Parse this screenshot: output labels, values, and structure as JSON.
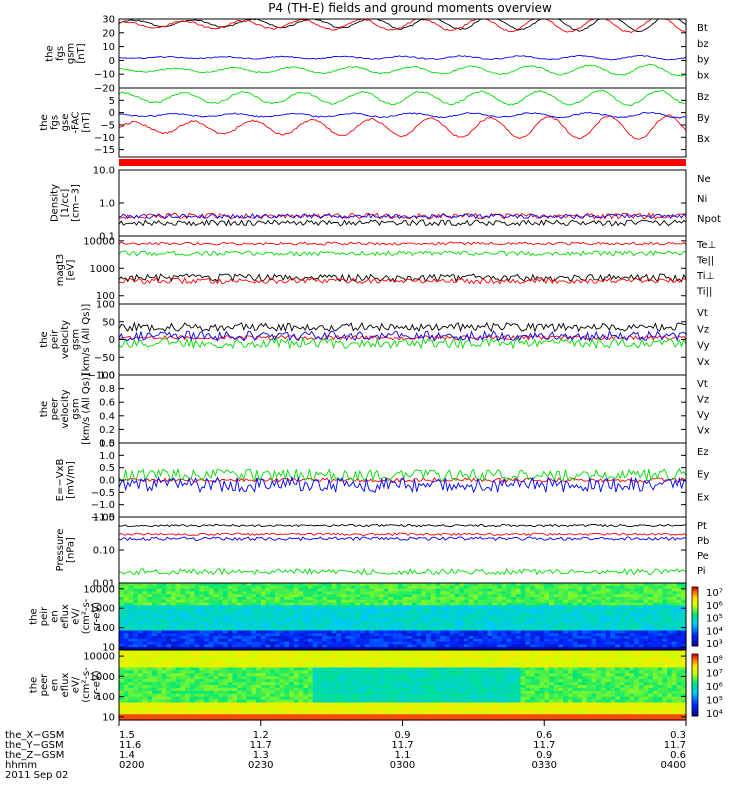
{
  "title": "P4 (TH-E) fields and ground moments overview",
  "colors": {
    "black": "#000000",
    "red": "#ff0000",
    "green": "#00dd00",
    "blue": "#0000ff"
  },
  "chart_data": [
    {
      "id": "fgs_gsm",
      "type": "line",
      "ylabel_lines": [
        "the",
        "fgs",
        "gsm",
        "[nT]"
      ],
      "ylim": [
        -20,
        30
      ],
      "ticks": [
        "30",
        "20",
        "10",
        "0",
        "−10",
        "−20"
      ],
      "tick_values": [
        30,
        20,
        10,
        0,
        -10,
        -20
      ],
      "series": [
        {
          "name": "Bt",
          "color": "black",
          "base": 27,
          "amp_start": 2,
          "amp_end": 6,
          "noise": 0.6
        },
        {
          "name": "bz",
          "color": "red",
          "base": 26,
          "amp_start": 2,
          "amp_end": 6,
          "noise": 0.6
        },
        {
          "name": "by",
          "color": "green",
          "base": -7,
          "amp_start": 1,
          "amp_end": 4,
          "noise": 0.5
        },
        {
          "name": "bx",
          "color": "blue",
          "base": 2,
          "amp_start": 0.5,
          "amp_end": 1.5,
          "noise": 0.4
        }
      ]
    },
    {
      "id": "fgs_gse",
      "type": "line",
      "ylabel_lines": [
        "the",
        "fgs",
        "gse",
        "-FAC",
        "[nT]"
      ],
      "ylim": [
        -18,
        10
      ],
      "ticks": [
        "5",
        "0",
        "−5",
        "−10",
        "−15"
      ],
      "tick_values": [
        5,
        0,
        -5,
        -10,
        -15
      ],
      "series": [
        {
          "name": "Bz",
          "color": "red",
          "base": -6,
          "amp_start": 2,
          "amp_end": 5,
          "noise": 0.4
        },
        {
          "name": "By",
          "color": "green",
          "base": 6,
          "amp_start": 2,
          "amp_end": 3,
          "noise": 0.4
        },
        {
          "name": "Bx",
          "color": "blue",
          "base": -1,
          "amp_start": 0.5,
          "amp_end": 1,
          "noise": 0.3
        }
      ]
    },
    {
      "id": "density",
      "type": "line",
      "log": true,
      "ylabel_lines": [
        "Density",
        "[1/cc]",
        "[cm−3]"
      ],
      "ylim": [
        0.1,
        10
      ],
      "ticks": [
        "10.0",
        "1.0",
        "0.1"
      ],
      "tick_values": [
        10,
        1,
        0.1
      ],
      "series": [
        {
          "name": "Ne",
          "color": "red",
          "base": 0.4,
          "amp_start": 0,
          "amp_end": 0,
          "noise": 0.05
        },
        {
          "name": "Ni",
          "color": "black",
          "base": 0.25,
          "amp_start": 0,
          "amp_end": 0,
          "noise": 0.05
        },
        {
          "name": "Npot",
          "color": "blue",
          "base": 0.4,
          "amp_start": 0,
          "amp_end": 0,
          "noise": 0.04
        }
      ]
    },
    {
      "id": "temperature",
      "type": "line",
      "log": true,
      "ylabel_lines": [
        "magt3",
        "[eV]"
      ],
      "ylim": [
        50,
        15000
      ],
      "ticks": [
        "10000",
        "1000",
        "100"
      ],
      "tick_values": [
        10000,
        1000,
        100
      ],
      "series": [
        {
          "name": "Te⊥",
          "color": "red",
          "base": 8000,
          "amp_start": 0,
          "amp_end": 0,
          "noise": 0.03
        },
        {
          "name": "Te||",
          "color": "black",
          "base": 450,
          "amp_start": 0,
          "amp_end": 0,
          "noise": 0.08
        },
        {
          "name": "Ti⊥",
          "color": "red",
          "base": 350,
          "amp_start": 0,
          "amp_end": 0,
          "noise": 0.06
        },
        {
          "name": "Ti||",
          "color": "green",
          "base": 3500,
          "amp_start": 0,
          "amp_end": 0,
          "noise": 0.05
        }
      ]
    },
    {
      "id": "peir_velocity",
      "type": "line",
      "ylabel_lines": [
        "the",
        "peir",
        "velocity",
        "gsm",
        "[km/s (All Qs)]"
      ],
      "ylim": [
        -100,
        100
      ],
      "ticks": [
        "100",
        "50",
        "0",
        "−50",
        "−100"
      ],
      "tick_values": [
        100,
        50,
        0,
        -50,
        -100
      ],
      "series": [
        {
          "name": "Vt",
          "color": "black",
          "base": 35,
          "amp_start": 0,
          "amp_end": 0,
          "noise": 12
        },
        {
          "name": "Vz",
          "color": "red",
          "base": 5,
          "amp_start": 0,
          "amp_end": 0,
          "noise": 6
        },
        {
          "name": "Vy",
          "color": "green",
          "base": -10,
          "amp_start": 0,
          "amp_end": 0,
          "noise": 14
        },
        {
          "name": "Vx",
          "color": "blue",
          "base": 10,
          "amp_start": 0,
          "amp_end": 0,
          "noise": 14
        }
      ]
    },
    {
      "id": "peer_velocity",
      "type": "line",
      "empty": true,
      "ylabel_lines": [
        "the",
        "peer",
        "velocity",
        "gsm",
        "[km/s (All Qs)]"
      ],
      "ylim": [
        0,
        1
      ],
      "ticks": [
        "1.0",
        "0.8",
        "0.6",
        "0.4",
        "0.2",
        "0.0"
      ],
      "tick_values": [
        1,
        0.8,
        0.6,
        0.4,
        0.2,
        0
      ],
      "series": [
        {
          "name": "Vt",
          "color": "black"
        },
        {
          "name": "Vz",
          "color": "red"
        },
        {
          "name": "Vy",
          "color": "green"
        },
        {
          "name": "Vx",
          "color": "blue"
        }
      ]
    },
    {
      "id": "efield",
      "type": "line",
      "ylabel_lines": [
        "E=−VxB",
        "[mV/m]"
      ],
      "ylim": [
        -1.5,
        1.5
      ],
      "ticks": [
        "1.5",
        "1.0",
        "0.5",
        "0.0",
        "−0.5",
        "−1.0",
        "−1.5"
      ],
      "tick_values": [
        1.5,
        1,
        0.5,
        0,
        -0.5,
        -1,
        -1.5
      ],
      "series": [
        {
          "name": "Ez",
          "color": "red",
          "base": 0,
          "amp_start": 0,
          "amp_end": 0,
          "noise": 0.08
        },
        {
          "name": "Ey",
          "color": "green",
          "base": 0.2,
          "amp_start": 0,
          "amp_end": 0,
          "noise": 0.25
        },
        {
          "name": "Ex",
          "color": "blue",
          "base": -0.2,
          "amp_start": 0,
          "amp_end": 0,
          "noise": 0.3
        }
      ]
    },
    {
      "id": "pressure",
      "type": "line",
      "log": true,
      "ylabel_lines": [
        "Pressure",
        "[nPa]"
      ],
      "ylim": [
        0.01,
        1
      ],
      "ticks": [
        "1.00",
        "0.10",
        "0.01"
      ],
      "tick_values": [
        1,
        0.1,
        0.01
      ],
      "series": [
        {
          "name": "Pt",
          "color": "black",
          "base": 0.55,
          "amp_start": 0,
          "amp_end": 0,
          "noise": 0.02
        },
        {
          "name": "Pb",
          "color": "red",
          "base": 0.3,
          "amp_start": 0.05,
          "amp_end": 0.2,
          "noise": 0.02
        },
        {
          "name": "Pe",
          "color": "green",
          "base": 0.022,
          "amp_start": 0,
          "amp_end": 0,
          "noise": 0.05
        },
        {
          "name": "Pi",
          "color": "blue",
          "base": 0.22,
          "amp_start": 0,
          "amp_end": 0,
          "noise": 0.03
        }
      ]
    },
    {
      "id": "peir_spec",
      "type": "heatmap",
      "ylabel_lines": [
        "the",
        "peir",
        "en",
        "eflux",
        "eV/",
        "(cm²-s-",
        "sr-eV)"
      ],
      "ylim": [
        7,
        20000
      ],
      "ticks": [
        "10000",
        "1000",
        "100",
        "10"
      ],
      "tick_values": [
        10000,
        1000,
        100,
        10
      ],
      "colorbar": {
        "ticks": [
          "10⁷",
          "10⁶",
          "10⁵",
          "10⁴",
          "10³"
        ],
        "min_exp": 3,
        "max_exp": 7
      }
    },
    {
      "id": "peer_spec",
      "type": "heatmap",
      "ylabel_lines": [
        "the",
        "peer",
        "en",
        "eflux",
        "eV/",
        "(cm²-s-",
        "sr-eV)"
      ],
      "ylim": [
        7,
        20000
      ],
      "ticks": [
        "10000",
        "1000",
        "100",
        "10"
      ],
      "tick_values": [
        10000,
        1000,
        100,
        10
      ],
      "colorbar": {
        "ticks": [
          "10⁸",
          "10⁷",
          "10⁶",
          "10⁵",
          "10⁴"
        ],
        "min_exp": 4,
        "max_exp": 8
      }
    }
  ],
  "footer": {
    "row_labels": [
      "the_X−GSM",
      "the_Y−GSM",
      "the_Z−GSM",
      "hhmm",
      "2011 Sep 02"
    ],
    "columns": [
      {
        "x": "1.5",
        "y": "11.6",
        "z": "1.4",
        "hhmm": "0200"
      },
      {
        "x": "1.2",
        "y": "11.7",
        "z": "1.3",
        "hhmm": "0230"
      },
      {
        "x": "0.9",
        "y": "11.7",
        "z": "1.1",
        "hhmm": "0300"
      },
      {
        "x": "0.6",
        "y": "11.7",
        "z": "0.9",
        "hhmm": "0330"
      },
      {
        "x": "0.3",
        "y": "11.7",
        "z": "0.6",
        "hhmm": "0400"
      }
    ]
  }
}
